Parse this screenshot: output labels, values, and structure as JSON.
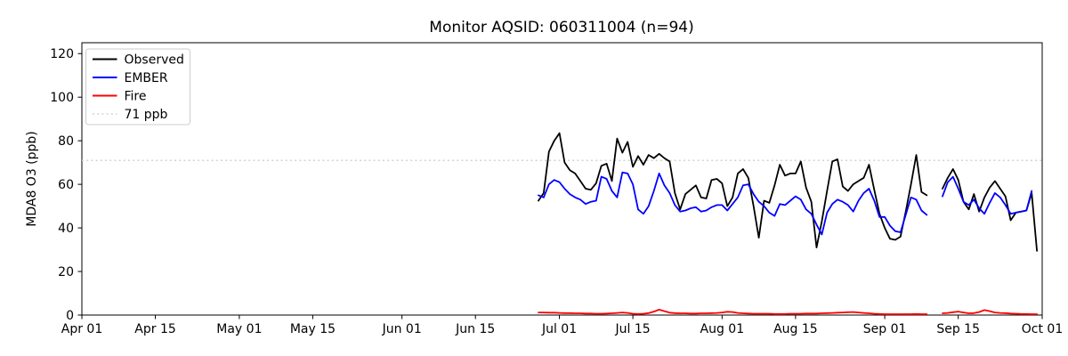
{
  "chart_data": {
    "type": "line",
    "title": "Monitor AQSID: 060311004 (n=94)",
    "ylabel": "MDA8 O3 (ppb)",
    "xlabel": "",
    "n_points": 94,
    "ylim": [
      0,
      125
    ],
    "xlim_days": [
      0,
      183
    ],
    "y_ticks": [
      0,
      20,
      40,
      60,
      80,
      100,
      120
    ],
    "x_ticks": [
      {
        "day": 0,
        "label": "Apr 01"
      },
      {
        "day": 14,
        "label": "Apr 15"
      },
      {
        "day": 30,
        "label": "May 01"
      },
      {
        "day": 44,
        "label": "May 15"
      },
      {
        "day": 61,
        "label": "Jun 01"
      },
      {
        "day": 75,
        "label": "Jun 15"
      },
      {
        "day": 91,
        "label": "Jul 01"
      },
      {
        "day": 105,
        "label": "Jul 15"
      },
      {
        "day": 122,
        "label": "Aug 01"
      },
      {
        "day": 136,
        "label": "Aug 15"
      },
      {
        "day": 153,
        "label": "Sep 01"
      },
      {
        "day": 167,
        "label": "Sep 15"
      },
      {
        "day": 183,
        "label": "Oct 01"
      }
    ],
    "threshold": {
      "label": "71 ppb",
      "value": 71,
      "color": "#d3d3d3",
      "style": "dotted"
    },
    "data_start_date": "Jun 27",
    "data_end_date": "Sep 30",
    "missing_dates": [
      "Sep 10",
      "Sep 11"
    ],
    "series": [
      {
        "name": "Observed",
        "color": "#000000",
        "start_day": 87,
        "values": [
          52.5,
          56,
          75,
          80,
          83.5,
          70,
          66.5,
          65,
          61.5,
          58,
          57.5,
          60.5,
          68.5,
          69.5,
          61.5,
          81,
          74.5,
          79.5,
          68,
          73,
          69,
          73.5,
          72,
          74,
          72,
          70.5,
          56,
          48.5,
          55.5,
          57.5,
          59.5,
          54,
          53.5,
          62,
          62.5,
          60.5,
          50,
          54,
          65,
          67,
          63,
          50,
          35.5,
          52.5,
          51.5,
          59.5,
          69,
          64,
          65,
          65,
          70.5,
          58.5,
          52,
          31,
          43,
          57,
          70.5,
          71.5,
          59,
          57,
          60,
          61.5,
          63,
          69,
          57.5,
          46.5,
          40,
          35,
          34.5,
          36,
          47.5,
          60,
          73.5,
          56.5,
          55,
          null,
          null,
          58,
          63,
          67,
          62,
          52,
          48.5,
          55.5,
          47.5,
          54,
          58.5,
          61.5,
          58,
          54.5,
          43.5,
          47,
          47.5,
          48,
          56,
          29.5
        ]
      },
      {
        "name": "EMBER",
        "color": "#0000ff",
        "start_day": 87,
        "values": [
          55,
          54,
          60,
          62,
          61,
          58,
          55.5,
          54,
          53,
          51,
          52,
          52.5,
          63.5,
          62.5,
          57,
          54,
          65.5,
          65,
          60,
          48.5,
          46.5,
          50,
          57,
          65,
          59.5,
          56,
          50.5,
          47.5,
          48,
          49,
          49.5,
          47.5,
          48,
          49.5,
          50.5,
          50.5,
          48,
          51,
          54,
          59.5,
          60,
          55.5,
          52,
          50,
          47,
          45.5,
          51,
          50.5,
          52.5,
          54.5,
          53,
          48.5,
          46.5,
          41.5,
          37,
          47,
          51,
          53,
          52,
          50.5,
          47.5,
          52.5,
          56,
          58,
          52.5,
          45,
          45,
          41,
          38.5,
          38,
          46,
          54,
          53,
          48,
          46,
          null,
          null,
          54.5,
          61,
          63.5,
          58,
          52,
          50.5,
          53,
          49,
          46.5,
          51.5,
          56,
          54,
          50.5,
          46.5,
          47,
          47.5,
          48,
          57,
          null
        ]
      },
      {
        "name": "Fire",
        "color": "#ff0000",
        "start_day": 87,
        "values": [
          1.2,
          1.2,
          1.1,
          1.1,
          1.0,
          0.9,
          0.9,
          0.8,
          0.8,
          0.7,
          0.7,
          0.6,
          0.6,
          0.7,
          0.8,
          1.0,
          1.2,
          1.0,
          0.6,
          0.5,
          0.6,
          0.9,
          1.6,
          2.5,
          1.8,
          1.1,
          0.9,
          0.8,
          0.8,
          0.7,
          0.7,
          0.8,
          0.8,
          0.9,
          1.0,
          1.2,
          1.5,
          1.4,
          1.0,
          0.8,
          0.7,
          0.6,
          0.6,
          0.6,
          0.6,
          0.5,
          0.5,
          0.5,
          0.6,
          0.6,
          0.6,
          0.7,
          0.7,
          0.7,
          0.8,
          0.9,
          1.0,
          1.1,
          1.2,
          1.3,
          1.4,
          1.2,
          1.0,
          0.8,
          0.6,
          0.5,
          0.4,
          0.4,
          0.4,
          0.4,
          0.4,
          0.4,
          0.5,
          0.4,
          0.4,
          null,
          null,
          0.8,
          1.0,
          1.3,
          1.6,
          1.2,
          0.8,
          0.9,
          1.4,
          2.3,
          1.8,
          1.2,
          1.0,
          0.9,
          0.7,
          0.6,
          0.5,
          0.5,
          0.4,
          0.4
        ]
      }
    ],
    "legend_position": "upper left",
    "grid": false
  }
}
